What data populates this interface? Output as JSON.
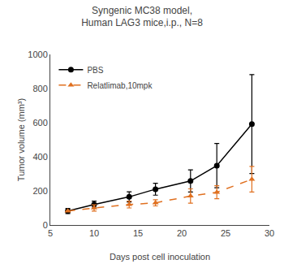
{
  "chart_data": {
    "type": "line",
    "title": "Syngenic MC38 model,\nHuman LAG3 mice,i.p., N=8",
    "xlabel": "Days post cell inoculation",
    "ylabel": "Tumor volume (mm³)",
    "x": [
      7,
      10,
      14,
      17,
      21,
      24,
      28
    ],
    "series": [
      {
        "name": "PBS",
        "color": "#000000",
        "marker": "circle",
        "line_style": "solid",
        "values": [
          82,
          120,
          165,
          210,
          258,
          348,
          592
        ],
        "errors": [
          15,
          20,
          30,
          35,
          65,
          130,
          290
        ]
      },
      {
        "name": "Relatlimab,10mpk",
        "color": "#E07020",
        "marker": "triangle-up",
        "line_style": "dashed",
        "values": [
          82,
          100,
          120,
          130,
          170,
          192,
          268
        ],
        "errors": [
          0,
          18,
          20,
          18,
          42,
          38,
          75
        ]
      }
    ],
    "xlim": [
      5,
      30
    ],
    "ylim": [
      0,
      1000
    ],
    "xticks": [
      5,
      10,
      15,
      20,
      25,
      30
    ],
    "yticks": [
      0,
      200,
      400,
      600,
      800,
      1000
    ],
    "grid": false,
    "legend": "upper left"
  }
}
